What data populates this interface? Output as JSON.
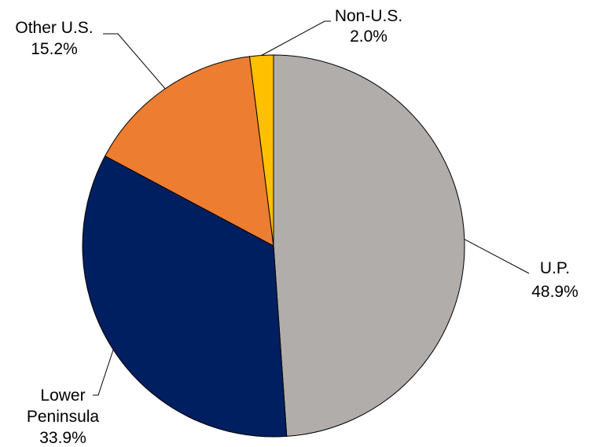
{
  "chart_data": {
    "type": "pie",
    "slices": [
      {
        "name": "U.P.",
        "lines": [
          "U.P."
        ],
        "percent_label": "48.9%",
        "value": 48.9,
        "color": "#B1ADAB"
      },
      {
        "name": "Lower Peninsula",
        "lines": [
          "Lower",
          "Peninsula"
        ],
        "percent_label": "33.9%",
        "value": 33.9,
        "color": "#001F60"
      },
      {
        "name": "Other U.S.",
        "lines": [
          "Other U.S."
        ],
        "percent_label": "15.2%",
        "value": 15.2,
        "color": "#ED7D31"
      },
      {
        "name": "Non-U.S.",
        "lines": [
          "Non-U.S."
        ],
        "percent_label": "2.0%",
        "value": 2.0,
        "color": "#FFC000"
      }
    ],
    "start_angle": "12 o'clock",
    "direction": "clockwise",
    "legend": "none",
    "data_labels": "outside with leader lines"
  }
}
